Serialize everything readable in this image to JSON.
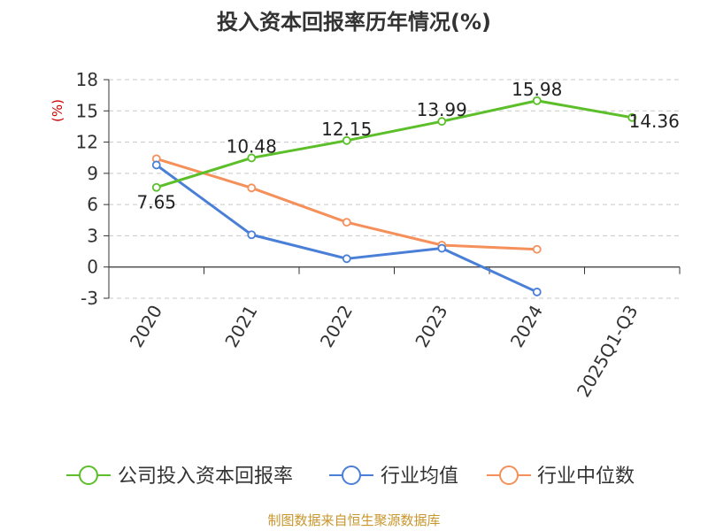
{
  "chart_data": {
    "type": "line",
    "title": "投入资本回报率历年情况(%)",
    "ylabel": "(%)",
    "xlabel": "",
    "categories": [
      "2020",
      "2021",
      "2022",
      "2023",
      "2024",
      "2025Q1-Q3"
    ],
    "ylim": [
      -3,
      18
    ],
    "yticks": [
      -3,
      0,
      3,
      6,
      9,
      12,
      15,
      18
    ],
    "grid": true,
    "legend_position": "bottom",
    "series": [
      {
        "name": "公司投入资本回报率",
        "color": "#5cbf2a",
        "values": [
          7.65,
          10.48,
          12.15,
          13.99,
          15.98,
          14.36
        ],
        "labels": [
          "7.65",
          "10.48",
          "12.15",
          "13.99",
          "15.98",
          "14.36"
        ]
      },
      {
        "name": "行业均值",
        "color": "#4a7fd8",
        "values": [
          9.8,
          3.1,
          0.8,
          1.8,
          -2.4,
          null
        ]
      },
      {
        "name": "行业中位数",
        "color": "#f5905a",
        "values": [
          10.4,
          7.6,
          4.3,
          2.1,
          1.7,
          null
        ]
      }
    ],
    "source": "制图数据来自恒生聚源数据库"
  }
}
